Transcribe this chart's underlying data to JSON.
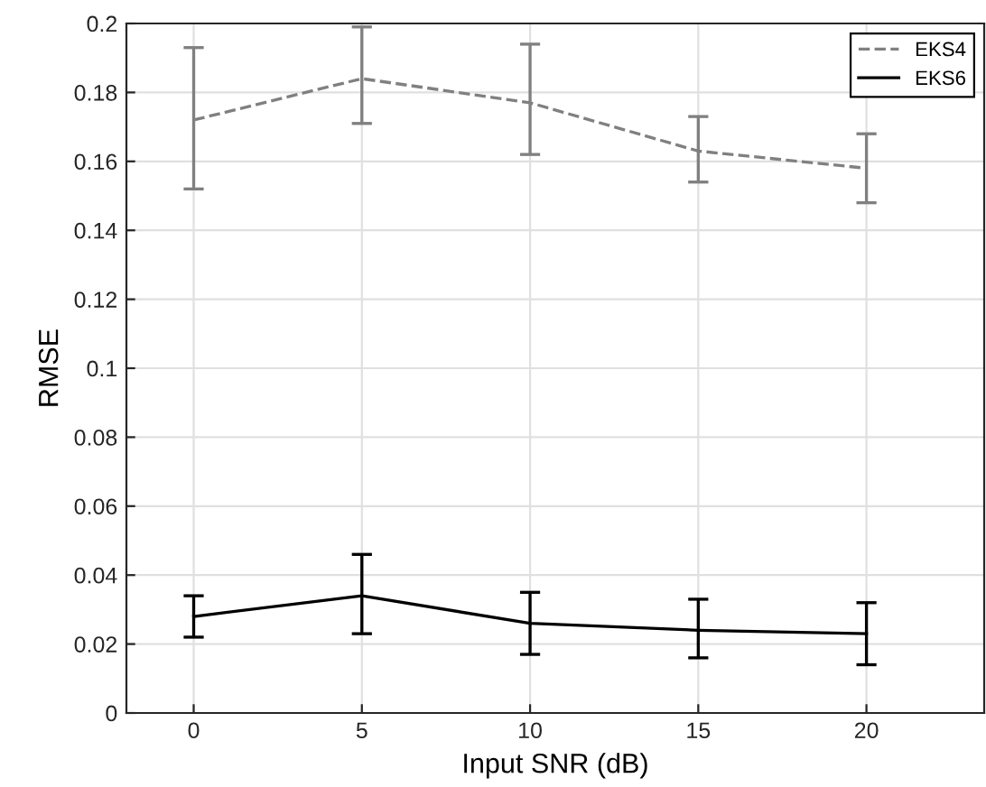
{
  "chart_data": {
    "type": "line",
    "xlabel": "Input SNR (dB)",
    "ylabel": "RMSE",
    "x": [
      0,
      5,
      10,
      15,
      20
    ],
    "series": [
      {
        "name": "EKS4",
        "color": "#808080",
        "line_style": "dashed",
        "values": [
          0.172,
          0.184,
          0.177,
          0.163,
          0.158
        ],
        "errors": [
          [
            0.152,
            0.193
          ],
          [
            0.171,
            0.199
          ],
          [
            0.162,
            0.194
          ],
          [
            0.154,
            0.173
          ],
          [
            0.148,
            0.168
          ]
        ]
      },
      {
        "name": "EKS6",
        "color": "#000000",
        "line_style": "solid",
        "values": [
          0.028,
          0.034,
          0.026,
          0.024,
          0.023
        ],
        "errors": [
          [
            0.022,
            0.034
          ],
          [
            0.023,
            0.046
          ],
          [
            0.017,
            0.035
          ],
          [
            0.016,
            0.033
          ],
          [
            0.014,
            0.032
          ]
        ]
      }
    ],
    "xlim": [
      -2,
      23.5
    ],
    "xticks": [
      0,
      5,
      10,
      15,
      20
    ],
    "ylim": [
      0,
      0.2
    ],
    "yticks": [
      0,
      0.02,
      0.04,
      0.06,
      0.08,
      0.1,
      0.12,
      0.14,
      0.16,
      0.18,
      0.2
    ],
    "grid": true,
    "legend": "top right",
    "marker": "none"
  }
}
